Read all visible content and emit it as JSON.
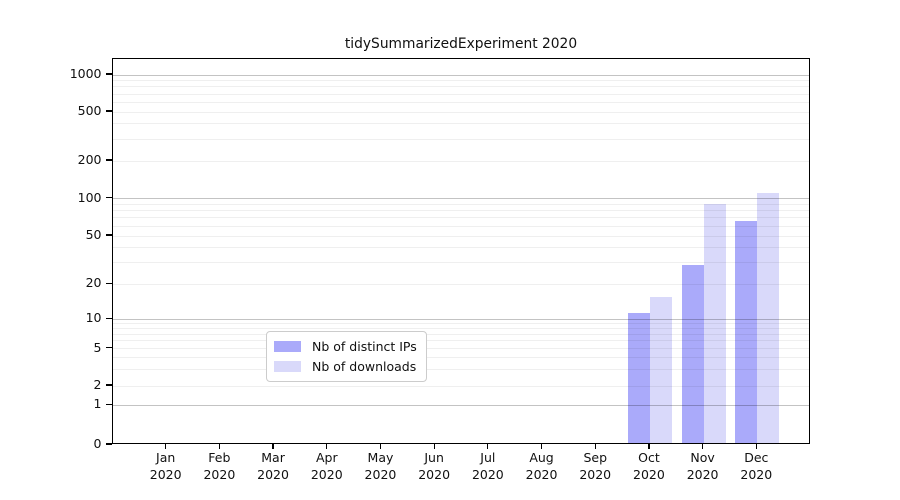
{
  "title": "tidySummarizedExperiment 2020",
  "chart_data": {
    "type": "bar",
    "title": "tidySummarizedExperiment 2020",
    "categories": [
      "Jan 2020",
      "Feb 2020",
      "Mar 2020",
      "Apr 2020",
      "May 2020",
      "Jun 2020",
      "Jul 2020",
      "Aug 2020",
      "Sep 2020",
      "Oct 2020",
      "Nov 2020",
      "Dec 2020"
    ],
    "months": [
      "Jan",
      "Feb",
      "Mar",
      "Apr",
      "May",
      "Jun",
      "Jul",
      "Aug",
      "Sep",
      "Oct",
      "Nov",
      "Dec"
    ],
    "year": "2020",
    "series": [
      {
        "name": "Nb of distinct IPs",
        "color": "#aaaafa",
        "values": [
          0,
          0,
          0,
          0,
          0,
          0,
          0,
          0,
          0,
          11,
          28,
          64
        ]
      },
      {
        "name": "Nb of downloads",
        "color": "#d9d9fa",
        "values": [
          0,
          0,
          0,
          0,
          0,
          0,
          0,
          0,
          0,
          15,
          87,
          107
        ]
      }
    ],
    "xlabel": "",
    "ylabel": "",
    "y_axis": {
      "scale": "symlog",
      "ticks": [
        0,
        1,
        2,
        5,
        10,
        20,
        50,
        100,
        200,
        500,
        1000
      ],
      "ylim": [
        0,
        1400
      ]
    },
    "grid": {
      "major_lines": [
        1,
        10,
        100,
        1000
      ],
      "minor_lines": [
        2,
        3,
        4,
        5,
        6,
        7,
        8,
        9,
        20,
        30,
        40,
        50,
        60,
        70,
        80,
        90,
        200,
        300,
        400,
        500,
        600,
        700,
        800,
        900
      ]
    },
    "legend": {
      "position": "lower center",
      "items": [
        {
          "label": "Nb of distinct IPs",
          "color": "#aaaafa"
        },
        {
          "label": "Nb of downloads",
          "color": "#d9d9fa"
        }
      ]
    }
  },
  "colors": {
    "bar_distinct_ips": "#aaaafa",
    "bar_downloads": "#d9d9fa",
    "axis": "#000000",
    "legend_border": "#cccccc",
    "grid_major": "#c3c3c3",
    "grid_minor": "#efefef"
  }
}
